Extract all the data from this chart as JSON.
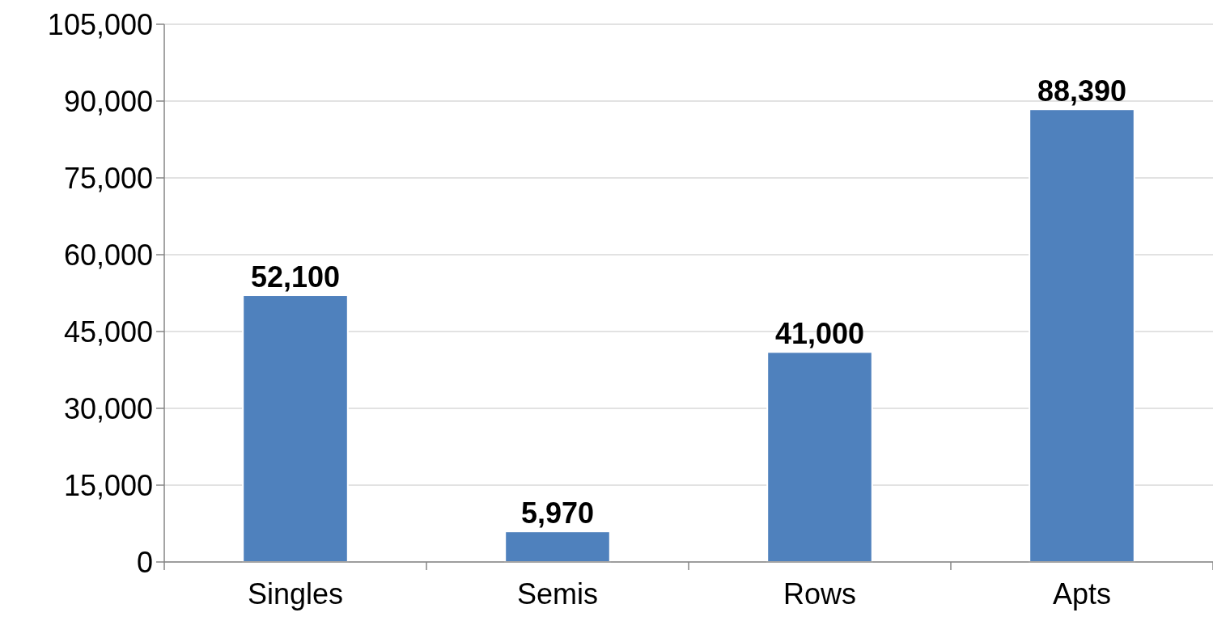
{
  "chart_data": {
    "type": "bar",
    "categories": [
      "Singles",
      "Semis",
      "Rows",
      "Apts"
    ],
    "values": [
      52100,
      5970,
      41000,
      88390
    ],
    "color": "#4f81bd",
    "ylim": [
      0,
      105000
    ],
    "yticks": [
      {
        "value": 0,
        "label": "0"
      },
      {
        "value": 15000,
        "label": "15,000"
      },
      {
        "value": 30000,
        "label": "30,000"
      },
      {
        "value": 45000,
        "label": "45,000"
      },
      {
        "value": 60000,
        "label": "60,000"
      },
      {
        "value": 75000,
        "label": "75,000"
      },
      {
        "value": 90000,
        "label": "90,000"
      },
      {
        "value": 105000,
        "label": "105,000"
      }
    ],
    "grid": "y",
    "value_labels": [
      "52,100",
      "5,970",
      "41,000",
      "88,390"
    ]
  }
}
